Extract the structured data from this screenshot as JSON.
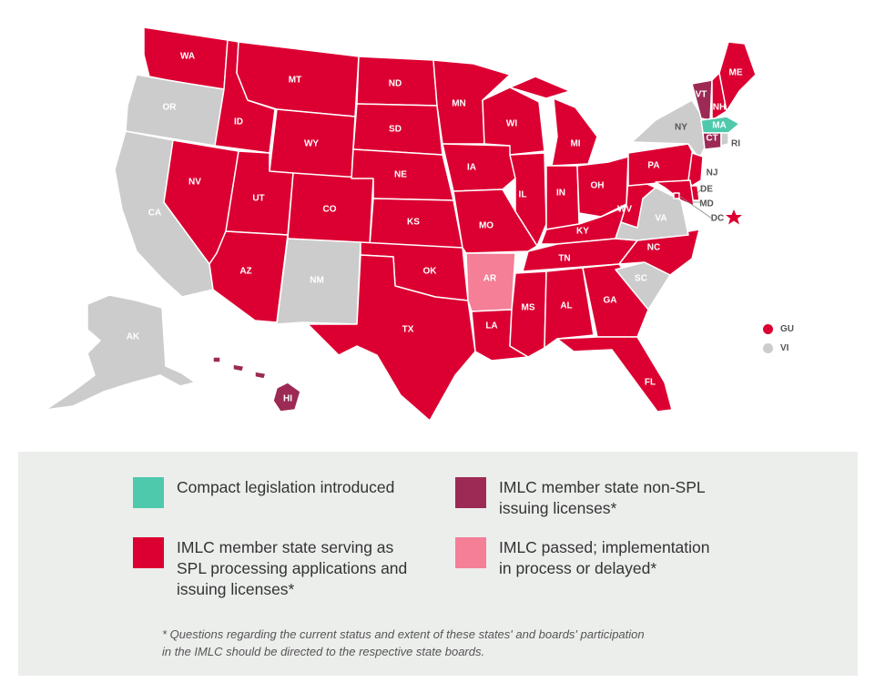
{
  "colors": {
    "spl": "#dc0032",
    "non_spl": "#9c2a55",
    "introduced": "#4ec9ac",
    "passed": "#f47f97",
    "none": "#cccccc"
  },
  "map": {
    "states": [
      {
        "abbr": "WA",
        "status": "spl"
      },
      {
        "abbr": "OR",
        "status": "none"
      },
      {
        "abbr": "CA",
        "status": "none"
      },
      {
        "abbr": "ID",
        "status": "spl"
      },
      {
        "abbr": "NV",
        "status": "spl"
      },
      {
        "abbr": "MT",
        "status": "spl"
      },
      {
        "abbr": "WY",
        "status": "spl"
      },
      {
        "abbr": "UT",
        "status": "spl"
      },
      {
        "abbr": "AZ",
        "status": "spl"
      },
      {
        "abbr": "CO",
        "status": "spl"
      },
      {
        "abbr": "NM",
        "status": "none"
      },
      {
        "abbr": "ND",
        "status": "spl"
      },
      {
        "abbr": "SD",
        "status": "spl"
      },
      {
        "abbr": "NE",
        "status": "spl"
      },
      {
        "abbr": "KS",
        "status": "spl"
      },
      {
        "abbr": "OK",
        "status": "spl"
      },
      {
        "abbr": "TX",
        "status": "spl"
      },
      {
        "abbr": "MN",
        "status": "spl"
      },
      {
        "abbr": "IA",
        "status": "spl"
      },
      {
        "abbr": "MO",
        "status": "spl"
      },
      {
        "abbr": "AR",
        "status": "passed"
      },
      {
        "abbr": "LA",
        "status": "spl"
      },
      {
        "abbr": "WI",
        "status": "spl"
      },
      {
        "abbr": "IL",
        "status": "spl"
      },
      {
        "abbr": "MS",
        "status": "spl"
      },
      {
        "abbr": "MI",
        "status": "spl"
      },
      {
        "abbr": "IN",
        "status": "spl"
      },
      {
        "abbr": "KY",
        "status": "spl"
      },
      {
        "abbr": "TN",
        "status": "spl"
      },
      {
        "abbr": "AL",
        "status": "spl"
      },
      {
        "abbr": "OH",
        "status": "spl"
      },
      {
        "abbr": "GA",
        "status": "spl"
      },
      {
        "abbr": "FL",
        "status": "spl"
      },
      {
        "abbr": "WV",
        "status": "spl"
      },
      {
        "abbr": "VA",
        "status": "none"
      },
      {
        "abbr": "NC",
        "status": "spl"
      },
      {
        "abbr": "SC",
        "status": "none"
      },
      {
        "abbr": "PA",
        "status": "spl"
      },
      {
        "abbr": "NY",
        "status": "none"
      },
      {
        "abbr": "VT",
        "status": "non_spl"
      },
      {
        "abbr": "NH",
        "status": "spl"
      },
      {
        "abbr": "ME",
        "status": "spl"
      },
      {
        "abbr": "MA",
        "status": "introduced"
      },
      {
        "abbr": "RI",
        "status": "none"
      },
      {
        "abbr": "CT",
        "status": "non_spl"
      },
      {
        "abbr": "NJ",
        "status": "spl"
      },
      {
        "abbr": "DE",
        "status": "spl"
      },
      {
        "abbr": "MD",
        "status": "spl"
      },
      {
        "abbr": "DC",
        "status": "spl"
      },
      {
        "abbr": "AK",
        "status": "none"
      },
      {
        "abbr": "HI",
        "status": "non_spl"
      }
    ],
    "territories": [
      {
        "abbr": "GU",
        "status": "spl"
      },
      {
        "abbr": "VI",
        "status": "none"
      }
    ]
  },
  "legend": {
    "introduced": "Compact legislation introduced",
    "non_spl": "IMLC member state non-SPL\nissuing licenses*",
    "spl": "IMLC member state serving as\nSPL processing applications and\nissuing licenses*",
    "passed": "IMLC passed; implementation\nin process or delayed*",
    "footnote": "* Questions regarding the current status and extent of these states' and boards' participation\nin the IMLC should be directed to the respective state boards."
  }
}
